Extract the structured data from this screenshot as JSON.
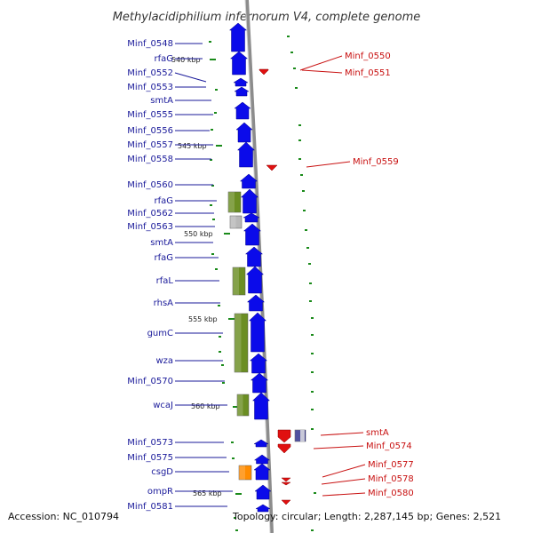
{
  "title": "Methylacidiphilium infernorum V4, complete genome",
  "footer": {
    "accession": "Accession: NC_010794",
    "topology": "Topology: circular; Length: 2,287,145 bp; Genes: 2,521"
  },
  "colors": {
    "forward_cds": "#0b0bea",
    "reverse_cds": "#e01010",
    "rna_feature": "#6b8e23",
    "gray_feature": "#b8b8b8",
    "orange_feature": "#ff8c00",
    "left_label": "#1a1a9a",
    "right_label": "#c81010",
    "gc_skew_mark": "#1a8a1a",
    "backbone": "#8c8c8c"
  },
  "ticks": [
    "540 kbp",
    "545 kbp",
    "550 kbp",
    "555 kbp",
    "560 kbp",
    "565 kbp"
  ],
  "left_labels": [
    "Minf_0548",
    "rfaG",
    "Minf_0552",
    "Minf_0553",
    "smtA",
    "Minf_0555",
    "Minf_0556",
    "Minf_0557",
    "Minf_0558",
    "Minf_0560",
    "rfaG",
    "Minf_0562",
    "Minf_0563",
    "smtA",
    "rfaG",
    "rfaL",
    "rhsA",
    "gumC",
    "wza",
    "Minf_0570",
    "wcaJ",
    "Minf_0573",
    "Minf_0575",
    "csgD",
    "ompR",
    "Minf_0581"
  ],
  "right_labels": [
    "Minf_0550",
    "Minf_0551",
    "Minf_0559",
    "smtA",
    "Minf_0574",
    "Minf_0577",
    "Minf_0578",
    "Minf_0580"
  ]
}
